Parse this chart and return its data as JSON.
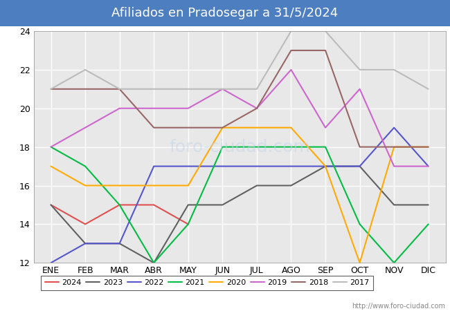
{
  "title": "Afiliados en Pradosegar a 31/5/2024",
  "title_bg_color": "#4d7ebf",
  "title_text_color": "white",
  "title_fontsize": 13,
  "ylim": [
    12,
    24
  ],
  "yticks": [
    12,
    14,
    16,
    18,
    20,
    22,
    24
  ],
  "months": [
    "ENE",
    "FEB",
    "MAR",
    "ABR",
    "MAY",
    "JUN",
    "JUL",
    "AGO",
    "SEP",
    "OCT",
    "NOV",
    "DIC"
  ],
  "url": "http://www.foro-ciudad.com",
  "series": [
    {
      "year": "2024",
      "color": "#e05050",
      "data": [
        15,
        14,
        15,
        15,
        14,
        null,
        null,
        null,
        null,
        null,
        null,
        null
      ]
    },
    {
      "year": "2023",
      "color": "#606060",
      "data": [
        15,
        13,
        13,
        12,
        15,
        15,
        16,
        16,
        17,
        17,
        15,
        15
      ]
    },
    {
      "year": "2022",
      "color": "#5555cc",
      "data": [
        12,
        13,
        13,
        17,
        17,
        17,
        17,
        17,
        17,
        17,
        19,
        17
      ]
    },
    {
      "year": "2021",
      "color": "#00bb44",
      "data": [
        18,
        17,
        15,
        12,
        14,
        18,
        18,
        18,
        18,
        14,
        12,
        14
      ]
    },
    {
      "year": "2020",
      "color": "#ffaa00",
      "data": [
        17,
        16,
        16,
        16,
        16,
        19,
        19,
        19,
        17,
        12,
        18,
        18
      ]
    },
    {
      "year": "2019",
      "color": "#cc66cc",
      "data": [
        18,
        19,
        20,
        20,
        20,
        21,
        20,
        22,
        19,
        21,
        17,
        17
      ]
    },
    {
      "year": "2018",
      "color": "#996666",
      "data": [
        21,
        21,
        21,
        19,
        19,
        19,
        20,
        23,
        23,
        18,
        18,
        18
      ]
    },
    {
      "year": "2017",
      "color": "#bbbbbb",
      "data": [
        21,
        22,
        21,
        21,
        21,
        21,
        21,
        24,
        24,
        22,
        22,
        21
      ]
    }
  ],
  "plot_bg_color": "#e8e8e8",
  "fig_bg_color": "#ffffff",
  "grid_color": "#ffffff",
  "linewidth": 1.5,
  "tick_fontsize": 9,
  "legend_fontsize": 8,
  "url_fontsize": 7
}
